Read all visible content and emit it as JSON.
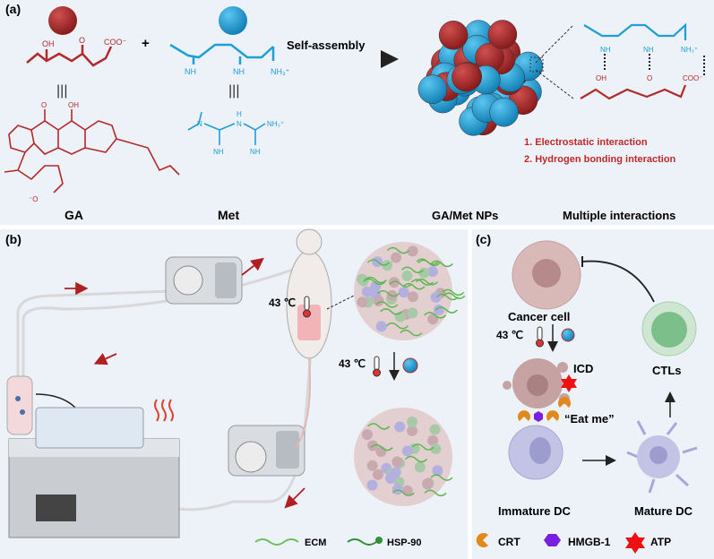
{
  "panel_a": {
    "label": "(a)",
    "ga_chain": {
      "oh": "OH",
      "o": "O",
      "coo": "COO⁻"
    },
    "plus": "+",
    "met_chain": {
      "nh1": "NH",
      "nh2": "NH",
      "nh3": "NH₃⁺"
    },
    "equiv": "|||",
    "ga_structure": {
      "o_top": "O",
      "oh_top": "OH",
      "o_minus": "⁻O"
    },
    "met_structure": {
      "n": "N",
      "h": "H",
      "n2": "N",
      "nh3": "NH₃⁺",
      "nh_a": "NH",
      "nh_b": "NH"
    },
    "arrow_label": "Self-assembly",
    "interaction_chain": {
      "nh1": "NH",
      "nh2": "NH",
      "nh3": "NH₃⁺",
      "oh": "OH",
      "o": "O",
      "coo": "COO⁻"
    },
    "interactions": [
      "1. Electrostatic interaction",
      "2. Hydrogen bonding interaction"
    ],
    "captions": {
      "ga": "GA",
      "met": "Met",
      "nps": "GA/Met NPs",
      "multi": "Multiple interactions"
    }
  },
  "panel_b": {
    "label": "(b)",
    "temp1": "43 ℃",
    "temp2": "43 ℃",
    "legend": [
      {
        "label": "ECM"
      },
      {
        "label": "HSP-90"
      }
    ]
  },
  "panel_c": {
    "label": "(c)",
    "cancer_cell": "Cancer cell",
    "temp": "43 ℃",
    "icd": "ICD",
    "eat_me": "“Eat me”",
    "immature_dc": "Immature DC",
    "mature_dc": "Mature DC",
    "ctls": "CTLs",
    "legend": [
      {
        "label": "CRT"
      },
      {
        "label": "HMGB-1"
      },
      {
        "label": "ATP"
      }
    ]
  },
  "colors": {
    "ga_red": "#a52a2a",
    "met_blue": "#1e9fd6",
    "panel_bg": "#edf1f8",
    "text_red": "#c0282a"
  }
}
